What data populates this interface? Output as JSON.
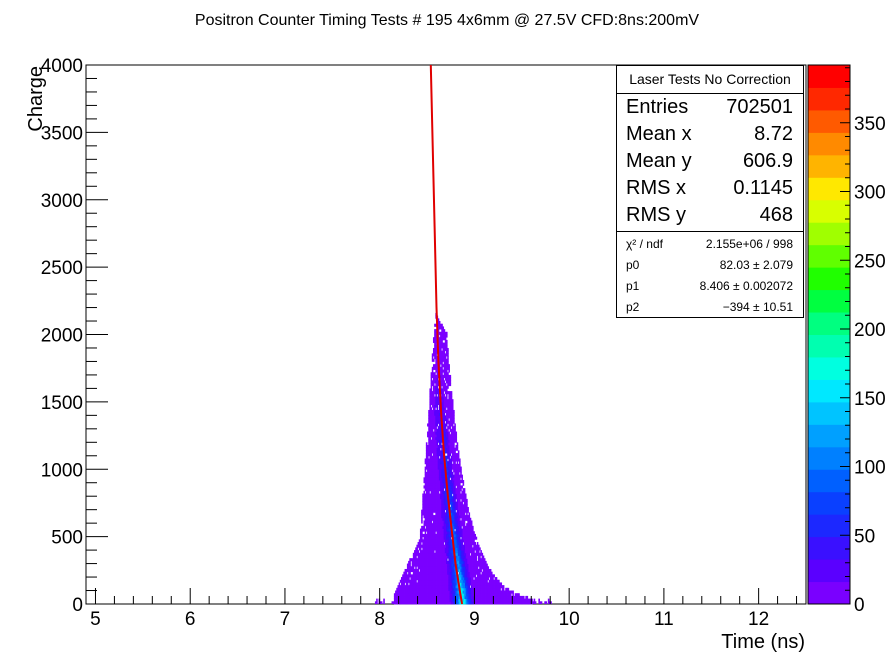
{
  "title": "Positron Counter Timing Tests # 195 4x6mm @ 27.5V CFD:8ns:200mV",
  "stats": {
    "header": "Laser Tests No Correction",
    "rows": [
      {
        "label": "Entries",
        "value": "702501"
      },
      {
        "label": "Mean x",
        "value": "8.72"
      },
      {
        "label": "Mean y",
        "value": "606.9"
      },
      {
        "label": "RMS x",
        "value": "0.1145"
      },
      {
        "label": "RMS y",
        "value": "468"
      }
    ],
    "fit": [
      {
        "label": "χ² / ndf",
        "value": "2.155e+06 / 998"
      },
      {
        "label": "p0",
        "value": "82.03 ± 2.079"
      },
      {
        "label": "p1",
        "value": "8.406 ± 0.002072"
      },
      {
        "label": "p2",
        "value": "−394 ± 10.51"
      }
    ]
  },
  "colors": {
    "fit_line": "#e00000",
    "palette": [
      "#7a00ff",
      "#5a00ff",
      "#3a10ff",
      "#1c28ff",
      "#0a40ff",
      "#0060ff",
      "#0080ff",
      "#00a0ff",
      "#00c4ff",
      "#00e8ff",
      "#00ffe0",
      "#00ffb0",
      "#00ff80",
      "#00ff40",
      "#20ff00",
      "#60ff00",
      "#a0ff00",
      "#d8ff00",
      "#ffe800",
      "#ffb400",
      "#ff8a00",
      "#ff5a00",
      "#ff2800",
      "#ff0000"
    ]
  },
  "chart_data": {
    "type": "heatmap",
    "title": "Positron Counter Timing Tests # 195 4x6mm @ 27.5V CFD:8ns:200mV",
    "xlabel": "Time (ns)",
    "ylabel": "Charge",
    "xlim": [
      4.9,
      12.5
    ],
    "ylim": [
      0,
      4000
    ],
    "x_ticks": [
      5,
      6,
      7,
      8,
      9,
      10,
      11,
      12
    ],
    "y_ticks": [
      0,
      500,
      1000,
      1500,
      2000,
      2500,
      3000,
      3500,
      4000
    ],
    "z_ticks": [
      0,
      50,
      100,
      150,
      200,
      250,
      300,
      350
    ],
    "zlim": [
      0,
      392
    ],
    "cluster": {
      "x_range": [
        8.15,
        9.6
      ],
      "peak_x": 8.62,
      "peak_y": 1500,
      "max_y": 2150
    },
    "fit_curve": {
      "description": "exponential-like fit through cluster core",
      "points": [
        [
          8.54,
          4000
        ],
        [
          8.56,
          3400
        ],
        [
          8.58,
          2800
        ],
        [
          8.6,
          2200
        ],
        [
          8.62,
          1800
        ],
        [
          8.65,
          1400
        ],
        [
          8.68,
          1100
        ],
        [
          8.72,
          800
        ],
        [
          8.76,
          550
        ],
        [
          8.8,
          300
        ],
        [
          8.85,
          80
        ],
        [
          8.87,
          0
        ]
      ]
    }
  }
}
